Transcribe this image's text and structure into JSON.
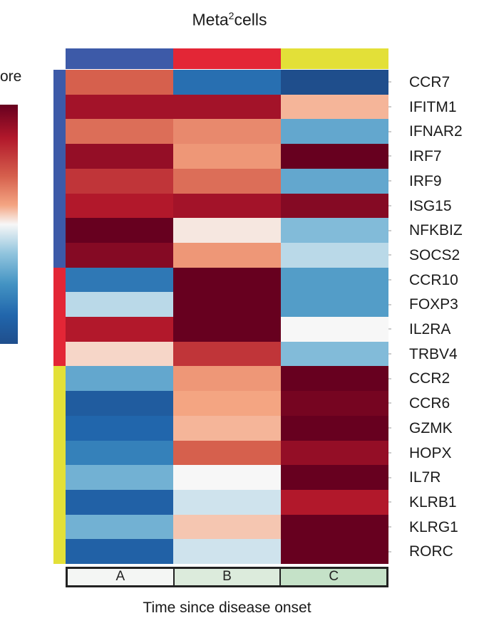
{
  "chart_data": {
    "type": "heatmap",
    "title_base": "Meta",
    "title_sup": "2",
    "title_tail": "cells",
    "legend_label": "ore",
    "columns": [
      "A",
      "B",
      "C"
    ],
    "column_colors": [
      "#3d5aa8",
      "#e32636",
      "#e3e038"
    ],
    "time_segment_colors": [
      "#f4f6f4",
      "#dcebdc",
      "#c5e2c8"
    ],
    "xlabel": "Time since disease onset",
    "rows": [
      "CCR7",
      "IFITM1",
      "IFNAR2",
      "IRF7",
      "IRF9",
      "ISG15",
      "NFKBIZ",
      "SOCS2",
      "CCR10",
      "FOXP3",
      "IL2RA",
      "TRBV4",
      "CCR2",
      "CCR6",
      "GZMK",
      "HOPX",
      "IL7R",
      "KLRB1",
      "KLRG1",
      "RORC"
    ],
    "row_groups": [
      {
        "color": "#3d5aa8",
        "count": 8
      },
      {
        "color": "#e32636",
        "count": 4
      },
      {
        "color": "#e3e038",
        "count": 8
      }
    ],
    "colorscale": [
      "#1f4e8c",
      "#2166ac",
      "#4393c3",
      "#92c5de",
      "#f7f7f7",
      "#f4a582",
      "#d6604d",
      "#b2182b",
      "#67001f"
    ],
    "vlim": [
      -2,
      2
    ],
    "values": [
      [
        1.0,
        -1.4,
        -2.0
      ],
      [
        1.6,
        1.6,
        0.4
      ],
      [
        0.9,
        0.7,
        -0.8
      ],
      [
        1.7,
        0.6,
        2.0
      ],
      [
        1.3,
        0.9,
        -0.8
      ],
      [
        1.5,
        1.6,
        1.8
      ],
      [
        2.0,
        0.1,
        -0.6
      ],
      [
        1.8,
        0.6,
        -0.3
      ],
      [
        -1.3,
        2.0,
        -0.9
      ],
      [
        -0.3,
        2.0,
        -0.9
      ],
      [
        1.5,
        2.0,
        0.0
      ],
      [
        0.2,
        1.3,
        -0.6
      ],
      [
        -0.8,
        0.6,
        2.0
      ],
      [
        -1.7,
        0.5,
        1.9
      ],
      [
        -1.5,
        0.4,
        2.0
      ],
      [
        -1.2,
        1.0,
        1.7
      ],
      [
        -0.7,
        0.0,
        2.0
      ],
      [
        -1.6,
        -0.2,
        1.5
      ],
      [
        -0.7,
        0.3,
        2.0
      ],
      [
        -1.6,
        -0.2,
        2.0
      ]
    ]
  }
}
